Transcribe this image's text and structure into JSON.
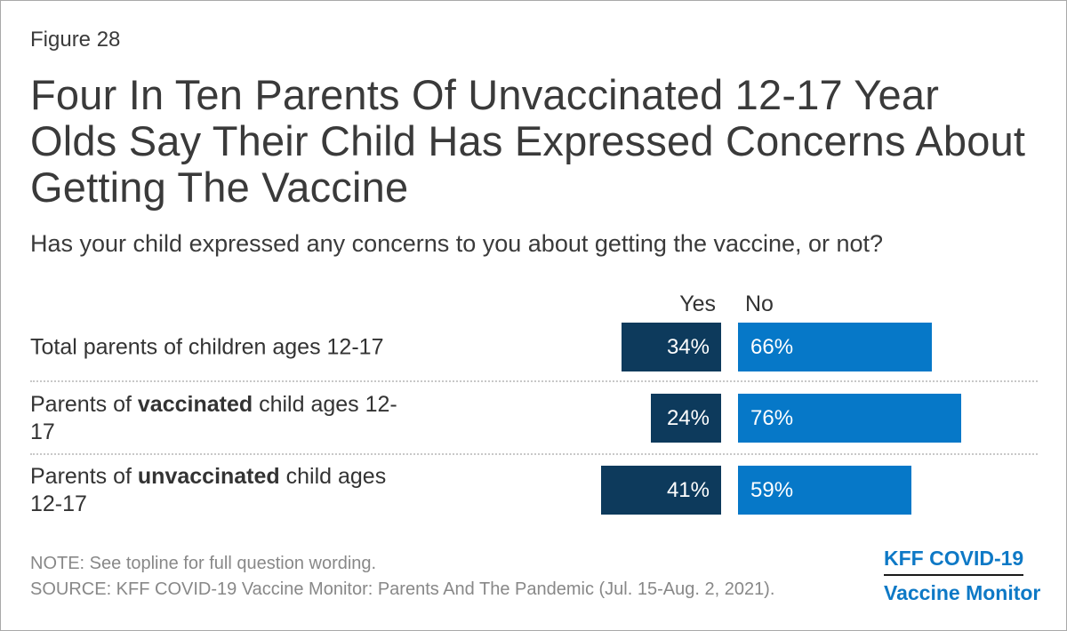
{
  "colors": {
    "yes_bar_navy": "#0d3a5c",
    "no_bar_blue": "#0678c8",
    "logo_blue": "#0e79c6",
    "title_text": "#3a3a3a",
    "footer_gray": "#888888"
  },
  "header": {
    "figure_label": "Figure 28",
    "title_lines": [
      "Four In Ten Parents Of Unvaccinated 12-17 Year",
      "Olds Say Their Child Has Expressed Concerns About",
      "Getting The Vaccine"
    ],
    "subtitle": "Has your child expressed any concerns to you about getting the vaccine, or not?"
  },
  "chart": {
    "col_headers": {
      "yes": "Yes",
      "no": "No"
    },
    "rows": [
      {
        "label": {
          "pre": "Total parents of children ages 12-17",
          "bold": "",
          "post": ""
        },
        "yes": {
          "value": 34,
          "label": "34%"
        },
        "no": {
          "value": 66,
          "label": "66%"
        }
      },
      {
        "label": {
          "pre": "Parents of ",
          "bold": "vaccinated",
          "post": " child ages 12-17"
        },
        "yes": {
          "value": 24,
          "label": "24%"
        },
        "no": {
          "value": 76,
          "label": "76%"
        }
      },
      {
        "label": {
          "pre": "Parents of ",
          "bold": "unvaccinated",
          "post": " child ages 12-17"
        },
        "yes": {
          "value": 41,
          "label": "41%"
        },
        "no": {
          "value": 59,
          "label": "59%"
        }
      }
    ]
  },
  "footer": {
    "note": "NOTE: See topline for full question wording.",
    "source": "SOURCE: KFF COVID-19 Vaccine Monitor: Parents And The Pandemic (Jul. 15-Aug. 2, 2021).",
    "logo": {
      "line1": "KFF COVID-19",
      "line2": "Vaccine Monitor"
    }
  },
  "chart_data": {
    "type": "bar",
    "orientation": "horizontal",
    "title": "Four In Ten Parents Of Unvaccinated 12-17 Year Olds Say Their Child Has Expressed Concerns About Getting The Vaccine",
    "subtitle": "Has your child expressed any concerns to you about getting the vaccine, or not?",
    "categories": [
      "Total parents of children ages 12-17",
      "Parents of vaccinated child ages 12-17",
      "Parents of unvaccinated child ages 12-17"
    ],
    "series": [
      {
        "name": "Yes",
        "values": [
          34,
          24,
          41
        ]
      },
      {
        "name": "No",
        "values": [
          66,
          76,
          59
        ]
      }
    ],
    "unit": "%",
    "value_labels": "inside-bars",
    "legend_position": "top",
    "grid": "dotted-row-separators"
  }
}
